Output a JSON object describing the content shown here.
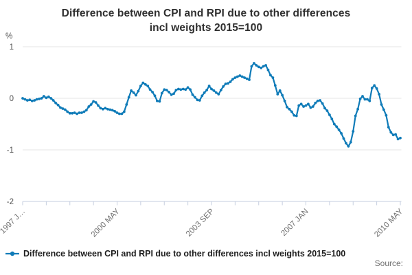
{
  "title": {
    "line1": "Difference between CPI and RPI due to other differences",
    "line2": "incl weights 2015=100"
  },
  "source_label": "Source:",
  "colors": {
    "line": "#0f7bb8",
    "gridline": "#e4e4e4",
    "axis": "#c5cedf",
    "title_text": "#2e2e2e",
    "x_label": "#6f6f6f",
    "y_label": "#4f4f4f",
    "legend_text": "#1d1d1d",
    "source_text": "#6e6e6e",
    "background": "#ffffff"
  },
  "chart_data": {
    "type": "line",
    "title": "Difference between CPI and RPI due to other differences incl weights 2015=100",
    "unit": "%",
    "grid": "horizontal-only",
    "legend_position": "bottom-left",
    "x_axis": {
      "frequency": "monthly",
      "start_label": "1997 JAN",
      "end_label": "2010 MAY",
      "tick_interval_months": 10,
      "tick_labels": [
        {
          "month_index": 0,
          "label": "1997 J…"
        },
        {
          "month_index": 40,
          "label": "2000 MAY"
        },
        {
          "month_index": 80,
          "label": "2003 SEP"
        },
        {
          "month_index": 120,
          "label": "2007 JAN"
        },
        {
          "month_index": 160,
          "label": "2010 MAY"
        }
      ]
    },
    "y_axis": {
      "min": -2,
      "max": 1,
      "ticks": [
        {
          "value": 1,
          "label": "1"
        },
        {
          "value": 0,
          "label": "0"
        },
        {
          "value": -1,
          "label": "-1"
        },
        {
          "value": -2,
          "label": "-2"
        }
      ]
    },
    "series": [
      {
        "name": "Difference between CPI and RPI due to other differences incl weights 2015=100",
        "color": "#0f7bb8",
        "marker": "circle",
        "start": "1997-01",
        "values": [
          0.0,
          -0.02,
          -0.04,
          -0.03,
          -0.05,
          -0.04,
          -0.02,
          -0.01,
          0.0,
          0.04,
          0.01,
          0.03,
          0.0,
          -0.04,
          -0.09,
          -0.13,
          -0.18,
          -0.2,
          -0.22,
          -0.26,
          -0.29,
          -0.29,
          -0.28,
          -0.3,
          -0.28,
          -0.28,
          -0.26,
          -0.23,
          -0.16,
          -0.12,
          -0.06,
          -0.08,
          -0.14,
          -0.19,
          -0.21,
          -0.19,
          -0.21,
          -0.22,
          -0.23,
          -0.25,
          -0.28,
          -0.3,
          -0.3,
          -0.26,
          -0.12,
          0.02,
          0.15,
          0.11,
          0.06,
          0.14,
          0.24,
          0.3,
          0.27,
          0.24,
          0.17,
          0.12,
          0.05,
          -0.05,
          -0.06,
          0.1,
          0.17,
          0.16,
          0.12,
          0.07,
          0.09,
          0.16,
          0.18,
          0.17,
          0.18,
          0.17,
          0.21,
          0.17,
          0.07,
          0.02,
          -0.03,
          -0.04,
          0.05,
          0.11,
          0.16,
          0.24,
          0.18,
          0.15,
          0.11,
          0.08,
          0.16,
          0.23,
          0.28,
          0.29,
          0.32,
          0.37,
          0.4,
          0.42,
          0.44,
          0.42,
          0.4,
          0.38,
          0.36,
          0.62,
          0.68,
          0.64,
          0.61,
          0.59,
          0.62,
          0.64,
          0.55,
          0.45,
          0.4,
          0.25,
          0.08,
          0.15,
          0.06,
          -0.05,
          -0.17,
          -0.21,
          -0.26,
          -0.33,
          -0.34,
          -0.14,
          -0.11,
          -0.16,
          -0.14,
          -0.11,
          -0.18,
          -0.16,
          -0.09,
          -0.05,
          -0.04,
          -0.1,
          -0.19,
          -0.24,
          -0.32,
          -0.4,
          -0.5,
          -0.55,
          -0.61,
          -0.68,
          -0.78,
          -0.87,
          -0.93,
          -0.85,
          -0.64,
          -0.34,
          -0.21,
          -0.01,
          0.04,
          -0.02,
          -0.02,
          -0.05,
          0.2,
          0.25,
          0.19,
          0.08,
          -0.12,
          -0.22,
          -0.33,
          -0.56,
          -0.66,
          -0.71,
          -0.7,
          -0.79,
          -0.77
        ]
      }
    ]
  }
}
